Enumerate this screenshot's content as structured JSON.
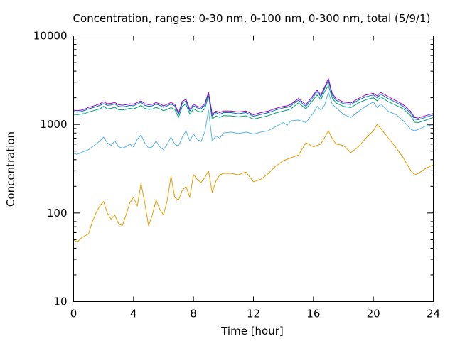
{
  "chart_data": {
    "type": "line",
    "title": "Concentration, ranges: 0-30 nm, 0-100 nm, 0-300 nm, total (5/9/1)",
    "xlabel": "Time [hour]",
    "ylabel": "Concentration",
    "xlim": [
      0,
      24
    ],
    "ylim": [
      10,
      10000
    ],
    "yscale": "log",
    "xticks": [
      0,
      4,
      8,
      12,
      16,
      20,
      24
    ],
    "xtick_labels": [
      "0",
      "4",
      "8",
      "12",
      "16",
      "20",
      "24"
    ],
    "yticks": [
      10,
      100,
      1000,
      10000
    ],
    "ytick_labels": [
      "10",
      "100",
      "1000",
      "10000"
    ],
    "grid": false,
    "legend": "none",
    "series": [
      {
        "color": "#E69F00",
        "x": [
          0,
          0.25,
          0.5,
          0.75,
          1,
          1.25,
          1.5,
          1.75,
          2,
          2.25,
          2.5,
          2.75,
          3,
          3.25,
          3.5,
          3.75,
          4,
          4.25,
          4.5,
          4.75,
          5,
          5.25,
          5.5,
          5.75,
          6,
          6.25,
          6.5,
          6.75,
          7,
          7.25,
          7.5,
          7.75,
          8,
          8.25,
          8.5,
          8.75,
          9,
          9.25,
          9.5,
          9.75,
          10,
          10.5,
          11,
          11.5,
          12,
          12.5,
          13,
          13.5,
          14,
          14.5,
          15,
          15.5,
          16,
          16.5,
          17,
          17.25,
          17.5,
          18,
          18.5,
          19,
          19.5,
          20,
          20.25,
          20.5,
          21,
          21.5,
          22,
          22.5,
          22.75,
          23,
          23.5,
          24
        ],
        "y": [
          50,
          47,
          52,
          55,
          58,
          80,
          100,
          120,
          135,
          100,
          85,
          95,
          75,
          72,
          95,
          130,
          150,
          120,
          215,
          130,
          72,
          95,
          140,
          110,
          95,
          140,
          260,
          150,
          140,
          180,
          200,
          150,
          270,
          240,
          220,
          250,
          300,
          170,
          230,
          270,
          280,
          280,
          270,
          290,
          225,
          240,
          280,
          340,
          390,
          420,
          450,
          620,
          560,
          600,
          850,
          700,
          600,
          580,
          480,
          560,
          700,
          850,
          1000,
          900,
          700,
          550,
          420,
          300,
          270,
          280,
          320,
          350
        ]
      },
      {
        "color": "#56B4E9",
        "x": [
          0,
          0.25,
          0.5,
          0.75,
          1,
          1.25,
          1.5,
          1.75,
          2,
          2.25,
          2.5,
          2.75,
          3,
          3.25,
          3.5,
          3.75,
          4,
          4.25,
          4.5,
          4.75,
          5,
          5.25,
          5.5,
          5.75,
          6,
          6.25,
          6.5,
          6.75,
          7,
          7.25,
          7.5,
          7.75,
          8,
          8.25,
          8.5,
          8.75,
          9,
          9.25,
          9.5,
          9.75,
          10,
          10.5,
          11,
          11.5,
          12,
          12.5,
          13,
          13.5,
          14,
          14.25,
          14.5,
          15,
          15.5,
          16,
          16.25,
          16.5,
          16.75,
          17,
          17.25,
          17.5,
          18,
          18.5,
          19,
          19.5,
          20,
          20.25,
          20.5,
          21,
          21.5,
          22,
          22.5,
          22.75,
          23,
          23.5,
          24
        ],
        "y": [
          470,
          460,
          480,
          500,
          520,
          560,
          600,
          650,
          720,
          620,
          580,
          650,
          560,
          540,
          560,
          600,
          560,
          680,
          760,
          620,
          540,
          560,
          650,
          560,
          520,
          600,
          720,
          600,
          570,
          720,
          850,
          650,
          780,
          680,
          640,
          820,
          1450,
          650,
          740,
          700,
          800,
          820,
          790,
          820,
          780,
          820,
          850,
          950,
          1050,
          980,
          1100,
          1120,
          1050,
          1350,
          1600,
          1450,
          1650,
          2300,
          1700,
          1550,
          1300,
          1200,
          1400,
          1600,
          1800,
          1550,
          1700,
          1400,
          1300,
          1100,
          880,
          850,
          880,
          960,
          990
        ]
      },
      {
        "color": "#009E73",
        "x": [
          0,
          0.25,
          0.5,
          0.75,
          1,
          1.25,
          1.5,
          1.75,
          2,
          2.25,
          2.5,
          2.75,
          3,
          3.25,
          3.5,
          3.75,
          4,
          4.25,
          4.5,
          4.75,
          5,
          5.25,
          5.5,
          5.75,
          6,
          6.25,
          6.5,
          6.75,
          7,
          7.25,
          7.5,
          7.75,
          8,
          8.25,
          8.5,
          8.75,
          9,
          9.25,
          9.5,
          9.75,
          10,
          10.5,
          11,
          11.5,
          12,
          12.5,
          13,
          13.5,
          14,
          14.25,
          14.5,
          15,
          15.5,
          16,
          16.25,
          16.5,
          16.75,
          17,
          17.25,
          17.5,
          18,
          18.5,
          19,
          19.5,
          20,
          20.25,
          20.5,
          21,
          21.5,
          22,
          22.5,
          22.75,
          23,
          23.5,
          24
        ],
        "y": [
          1300,
          1290,
          1310,
          1330,
          1380,
          1420,
          1460,
          1500,
          1600,
          1500,
          1520,
          1560,
          1470,
          1460,
          1480,
          1520,
          1500,
          1560,
          1640,
          1520,
          1480,
          1490,
          1560,
          1500,
          1430,
          1480,
          1550,
          1480,
          1200,
          1600,
          1700,
          1300,
          1500,
          1420,
          1380,
          1500,
          2100,
          1150,
          1250,
          1200,
          1260,
          1250,
          1220,
          1250,
          1150,
          1200,
          1260,
          1350,
          1420,
          1450,
          1500,
          1750,
          1500,
          1900,
          2150,
          1900,
          2350,
          2750,
          2000,
          1750,
          1600,
          1550,
          1750,
          1900,
          2000,
          1850,
          2050,
          1800,
          1650,
          1500,
          1250,
          1060,
          1050,
          1120,
          1200
        ]
      },
      {
        "color": "#0072B2",
        "x": [
          0,
          0.25,
          0.5,
          0.75,
          1,
          1.25,
          1.5,
          1.75,
          2,
          2.25,
          2.5,
          2.75,
          3,
          3.25,
          3.5,
          3.75,
          4,
          4.25,
          4.5,
          4.75,
          5,
          5.25,
          5.5,
          5.75,
          6,
          6.25,
          6.5,
          6.75,
          7,
          7.25,
          7.5,
          7.75,
          8,
          8.25,
          8.5,
          8.75,
          9,
          9.25,
          9.5,
          9.75,
          10,
          10.5,
          11,
          11.5,
          12,
          12.5,
          13,
          13.5,
          14,
          14.25,
          14.5,
          15,
          15.5,
          16,
          16.25,
          16.5,
          16.75,
          17,
          17.25,
          17.5,
          18,
          18.5,
          19,
          19.5,
          20,
          20.25,
          20.5,
          21,
          21.5,
          22,
          22.5,
          22.75,
          23,
          23.5,
          24
        ],
        "y": [
          1400,
          1380,
          1400,
          1440,
          1500,
          1540,
          1580,
          1640,
          1720,
          1640,
          1660,
          1700,
          1600,
          1580,
          1600,
          1640,
          1620,
          1700,
          1780,
          1640,
          1600,
          1620,
          1700,
          1640,
          1560,
          1620,
          1700,
          1620,
          1300,
          1740,
          1840,
          1420,
          1620,
          1540,
          1500,
          1640,
          2250,
          1250,
          1360,
          1300,
          1360,
          1360,
          1320,
          1360,
          1240,
          1300,
          1360,
          1460,
          1540,
          1560,
          1620,
          1880,
          1600,
          2050,
          2350,
          2050,
          2550,
          3100,
          2150,
          1880,
          1720,
          1680,
          1880,
          2050,
          2150,
          2000,
          2200,
          1950,
          1780,
          1600,
          1340,
          1150,
          1130,
          1210,
          1280
        ]
      },
      {
        "color": "#9400D3",
        "x": [
          0,
          0.25,
          0.5,
          0.75,
          1,
          1.25,
          1.5,
          1.75,
          2,
          2.25,
          2.5,
          2.75,
          3,
          3.25,
          3.5,
          3.75,
          4,
          4.25,
          4.5,
          4.75,
          5,
          5.25,
          5.5,
          5.75,
          6,
          6.25,
          6.5,
          6.75,
          7,
          7.25,
          7.5,
          7.75,
          8,
          8.25,
          8.5,
          8.75,
          9,
          9.25,
          9.5,
          9.75,
          10,
          10.5,
          11,
          11.5,
          12,
          12.5,
          13,
          13.5,
          14,
          14.25,
          14.5,
          15,
          15.5,
          16,
          16.25,
          16.5,
          16.75,
          17,
          17.25,
          17.5,
          18,
          18.5,
          19,
          19.5,
          20,
          20.25,
          20.5,
          21,
          21.5,
          22,
          22.5,
          22.75,
          23,
          23.5,
          24
        ],
        "y": [
          1450,
          1430,
          1450,
          1490,
          1560,
          1600,
          1650,
          1710,
          1800,
          1710,
          1730,
          1770,
          1670,
          1650,
          1670,
          1710,
          1690,
          1770,
          1850,
          1710,
          1670,
          1690,
          1770,
          1710,
          1620,
          1690,
          1770,
          1690,
          1350,
          1820,
          1920,
          1480,
          1690,
          1600,
          1560,
          1710,
          2300,
          1300,
          1420,
          1360,
          1420,
          1420,
          1380,
          1420,
          1290,
          1360,
          1420,
          1520,
          1600,
          1620,
          1690,
          1960,
          1670,
          2150,
          2450,
          2150,
          2650,
          3300,
          2250,
          1960,
          1790,
          1750,
          1960,
          2150,
          2250,
          2100,
          2300,
          2050,
          1860,
          1670,
          1400,
          1200,
          1180,
          1260,
          1330
        ]
      }
    ]
  }
}
